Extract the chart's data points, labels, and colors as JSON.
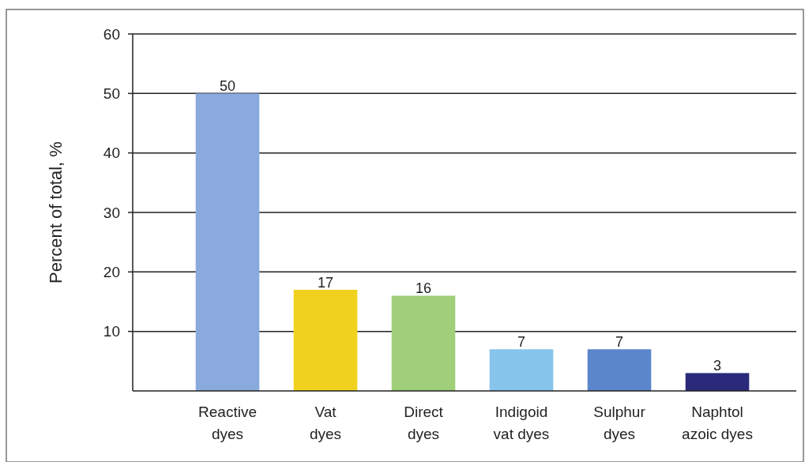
{
  "chart_data": {
    "type": "bar",
    "ylabel": "Percent of total, %",
    "categories": [
      "Reactive\ndyes",
      "Vat\ndyes",
      "Direct\ndyes",
      "Indigoid\nvat dyes",
      "Sulphur\ndyes",
      "Naphtol\nazoic dyes"
    ],
    "values": [
      50,
      17,
      16,
      7,
      7,
      3
    ],
    "colors": [
      "#8aaade",
      "#f0d21e",
      "#9fcf78",
      "#86c4ec",
      "#5b86cb",
      "#2b2a7a"
    ],
    "ylim": [
      0,
      60
    ],
    "yticks": [
      10,
      20,
      30,
      40,
      50,
      60
    ],
    "grid": "y",
    "data_labels": true
  }
}
